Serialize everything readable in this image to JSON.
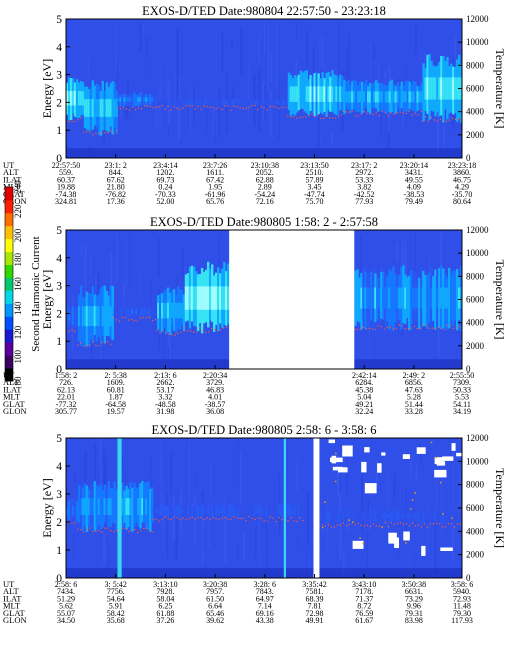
{
  "chart_data": [
    {
      "type": "heatmap",
      "title": "EXOS-D/TED   Date:980804   22:57:50 - 23:23:18",
      "ylabel": "Energy [eV]",
      "y2label": "Temperature [K]",
      "ylim": [
        0,
        5
      ],
      "y2lim": [
        0,
        12000
      ],
      "yticks": [
        "0",
        "1",
        "2",
        "3",
        "4",
        "5"
      ],
      "y2ticks": [
        "0",
        "2000",
        "4000",
        "6000",
        "8000",
        "10000",
        "12000"
      ],
      "row_labels": [
        "UT",
        "ALT",
        "ILAT",
        "MLT",
        "GLAT",
        "GLON"
      ],
      "columns": [
        {
          "UT": "22:57:50",
          "ALT": "559.",
          "ILAT": "60.37",
          "MLT": "19.88",
          "GLAT": "-74.38",
          "GLON": "324.81"
        },
        {
          "UT": "23:1: 2",
          "ALT": "844.",
          "ILAT": "67.62",
          "MLT": "21.80",
          "GLAT": "-76.82",
          "GLON": "17.36"
        },
        {
          "UT": "23:4:14",
          "ALT": "1202.",
          "ILAT": "69.73",
          "MLT": "0.24",
          "GLAT": "-70.33",
          "GLON": "52.00"
        },
        {
          "UT": "23:7:26",
          "ALT": "1611.",
          "ILAT": "67.42",
          "MLT": "1.95",
          "GLAT": "-61.96",
          "GLON": "65.76"
        },
        {
          "UT": "23:10:38",
          "ALT": "2052.",
          "ILAT": "62.88",
          "MLT": "2.89",
          "GLAT": "-54.24",
          "GLON": "72.16"
        },
        {
          "UT": "23:13:50",
          "ALT": "2510.",
          "ILAT": "57.89",
          "MLT": "3.45",
          "GLAT": "-47.74",
          "GLON": "75.70"
        },
        {
          "UT": "23:17: 2",
          "ALT": "2972.",
          "ILAT": "53.33",
          "MLT": "3.82",
          "GLAT": "-42.52",
          "GLON": "77.93"
        },
        {
          "UT": "23:20:14",
          "ALT": "3431.",
          "ILAT": "49.55",
          "MLT": "4.09",
          "GLAT": "-38.53",
          "GLON": "79.49"
        },
        {
          "UT": "23:23:18",
          "ALT": "3860.",
          "ILAT": "46.75",
          "MLT": "4.29",
          "GLAT": "-35.70",
          "GLON": "80.64"
        }
      ],
      "col_positions": [
        0,
        0.1255,
        0.251,
        0.3765,
        0.502,
        0.6275,
        0.753,
        0.8785,
        1.0
      ],
      "data_gaps": [],
      "intensity_segments": [
        {
          "from": 0.0,
          "to": 0.045,
          "band_low": 1.5,
          "band_high": 2.8,
          "level": 0.7
        },
        {
          "from": 0.045,
          "to": 0.13,
          "band_low": 1.0,
          "band_high": 2.6,
          "level": 0.6
        },
        {
          "from": 0.13,
          "to": 0.22,
          "band_low": 1.9,
          "band_high": 2.3,
          "level": 0.4
        },
        {
          "from": 0.22,
          "to": 0.56,
          "band_low": 1.9,
          "band_high": 2.1,
          "level": 0.15
        },
        {
          "from": 0.56,
          "to": 0.7,
          "band_low": 1.6,
          "band_high": 3.0,
          "level": 0.65
        },
        {
          "from": 0.7,
          "to": 0.9,
          "band_low": 1.7,
          "band_high": 2.7,
          "level": 0.55
        },
        {
          "from": 0.9,
          "to": 1.0,
          "band_low": 1.5,
          "band_high": 3.5,
          "level": 0.75
        }
      ]
    },
    {
      "type": "heatmap",
      "title": "EXOS-D/TED   Date:980805   1:58: 2 - 2:57:58",
      "ylabel": "Energy [eV]",
      "y2label": "Temperature [K]",
      "ylim": [
        0,
        5
      ],
      "y2lim": [
        0,
        12000
      ],
      "yticks": [
        "0",
        "1",
        "2",
        "3",
        "4",
        "5"
      ],
      "y2ticks": [
        "0",
        "2000",
        "4000",
        "6000",
        "8000",
        "10000",
        "12000"
      ],
      "row_labels": [
        "UT",
        "ALT",
        "ILAT",
        "MLT",
        "GLAT",
        "GLON"
      ],
      "columns": [
        {
          "UT": "1:58: 2",
          "ALT": "726.",
          "ILAT": "62.13",
          "MLT": "22.01",
          "GLAT": "-77.32",
          "GLON": "305.77"
        },
        {
          "UT": "2: 5:38",
          "ALT": "1609.",
          "ILAT": "60.81",
          "MLT": "1.87",
          "GLAT": "-64.58",
          "GLON": "19.57"
        },
        {
          "UT": "2:13: 6",
          "ALT": "2662.",
          "ILAT": "53.17",
          "MLT": "3.32",
          "GLAT": "-48.58",
          "GLON": "31.98"
        },
        {
          "UT": "2:20:34",
          "ALT": "3729.",
          "ILAT": "46.83",
          "MLT": "4.01",
          "GLAT": "-38.57",
          "GLON": "36.08"
        },
        {
          "UT": "2:42:14",
          "ALT": "6284.",
          "ILAT": "45.38",
          "MLT": "5.04",
          "GLAT": "49.21",
          "GLON": "32.24"
        },
        {
          "UT": "2:49: 2",
          "ALT": "6856.",
          "ILAT": "47.63",
          "MLT": "5.28",
          "GLAT": "51.44",
          "GLON": "33.28"
        },
        {
          "UT": "2:55:50",
          "ALT": "7309.",
          "ILAT": "50.33",
          "MLT": "5.53",
          "GLAT": "54.11",
          "GLON": "34.19"
        }
      ],
      "col_positions": [
        0,
        0.1255,
        0.251,
        0.3765,
        0.753,
        0.8785,
        1.0
      ],
      "data_gaps": [
        [
          0.412,
          0.728
        ]
      ],
      "intensity_segments": [
        {
          "from": 0.0,
          "to": 0.03,
          "band_low": 1.5,
          "band_high": 2.3,
          "level": 0.3
        },
        {
          "from": 0.03,
          "to": 0.12,
          "band_low": 1.0,
          "band_high": 2.8,
          "level": 0.55
        },
        {
          "from": 0.12,
          "to": 0.23,
          "band_low": 1.9,
          "band_high": 2.2,
          "level": 0.2
        },
        {
          "from": 0.23,
          "to": 0.3,
          "band_low": 1.4,
          "band_high": 2.8,
          "level": 0.55
        },
        {
          "from": 0.3,
          "to": 0.412,
          "band_low": 1.5,
          "band_high": 3.6,
          "level": 0.8
        },
        {
          "from": 0.728,
          "to": 1.0,
          "band_low": 1.6,
          "band_high": 3.5,
          "level": 0.5
        }
      ]
    },
    {
      "type": "heatmap",
      "title": "EXOS-D/TED   Date:980805   2:58: 6 - 3:58: 6",
      "ylabel": "Energy [eV]",
      "y2label": "Temperature [K]",
      "ylim": [
        0,
        5
      ],
      "y2lim": [
        0,
        12000
      ],
      "yticks": [
        "0",
        "1",
        "2",
        "3",
        "4",
        "5"
      ],
      "y2ticks": [
        "0",
        "2000",
        "4000",
        "6000",
        "8000",
        "10000",
        "12000"
      ],
      "row_labels": [
        "UT",
        "ALT",
        "ILAT",
        "MLT",
        "GLAT",
        "GLON"
      ],
      "columns": [
        {
          "UT": "2:58: 6",
          "ALT": "7434.",
          "ILAT": "51.29",
          "MLT": "5.62",
          "GLAT": "55.07",
          "GLON": "34.50"
        },
        {
          "UT": "3: 5:42",
          "ALT": "7756.",
          "ILAT": "54.64",
          "MLT": "5.91",
          "GLAT": "58.42",
          "GLON": "35.68"
        },
        {
          "UT": "3:13:10",
          "ALT": "7928.",
          "ILAT": "58.04",
          "MLT": "6.25",
          "GLAT": "61.88",
          "GLON": "37.26"
        },
        {
          "UT": "3:20:38",
          "ALT": "7957.",
          "ILAT": "61.50",
          "MLT": "6.64",
          "GLAT": "65.46",
          "GLON": "39.62"
        },
        {
          "UT": "3:28: 6",
          "ALT": "7843.",
          "ILAT": "64.97",
          "MLT": "7.14",
          "GLAT": "69.16",
          "GLON": "43.38"
        },
        {
          "UT": "3:35:42",
          "ALT": "7581.",
          "ILAT": "68.39",
          "MLT": "7.81",
          "GLAT": "72.98",
          "GLON": "49.91"
        },
        {
          "UT": "3:43:10",
          "ALT": "7178.",
          "ILAT": "71.37",
          "MLT": "8.72",
          "GLAT": "76.59",
          "GLON": "61.67"
        },
        {
          "UT": "3:50:38",
          "ALT": "6631.",
          "ILAT": "73.29",
          "MLT": "9.96",
          "GLAT": "79.31",
          "GLON": "83.98"
        },
        {
          "UT": "3:58: 6",
          "ALT": "5940.",
          "ILAT": "72.93",
          "MLT": "11.48",
          "GLAT": "79.30",
          "GLON": "117.93"
        }
      ],
      "col_positions": [
        0,
        0.1255,
        0.251,
        0.3765,
        0.502,
        0.6275,
        0.753,
        0.8785,
        1.0
      ],
      "data_gaps": [
        [
          0.625,
          0.64
        ]
      ],
      "intensity_segments": [
        {
          "from": 0.0,
          "to": 0.03,
          "band_low": 2.0,
          "band_high": 2.8,
          "level": 0.3
        },
        {
          "from": 0.03,
          "to": 0.22,
          "band_low": 1.8,
          "band_high": 3.3,
          "level": 0.5
        },
        {
          "from": 0.22,
          "to": 0.6,
          "band_low": 2.2,
          "band_high": 2.6,
          "level": 0.15
        },
        {
          "from": 0.64,
          "to": 1.0,
          "band_low": 2.0,
          "band_high": 2.4,
          "level": 0.1
        }
      ]
    }
  ],
  "colorbar": {
    "label": "Second Harmonic Current",
    "ticks": [
      "80",
      "100",
      "120",
      "140",
      "160",
      "180",
      "200",
      "220",
      "240"
    ],
    "range": [
      80,
      240
    ],
    "colors": [
      "#000000",
      "#3a0060",
      "#5a00a0",
      "#1a1ad0",
      "#0050ff",
      "#0098ff",
      "#00d8e8",
      "#00c870",
      "#30d800",
      "#a8e800",
      "#ffff00",
      "#ffc000",
      "#ff7000",
      "#ff2000",
      "#e00000"
    ]
  }
}
